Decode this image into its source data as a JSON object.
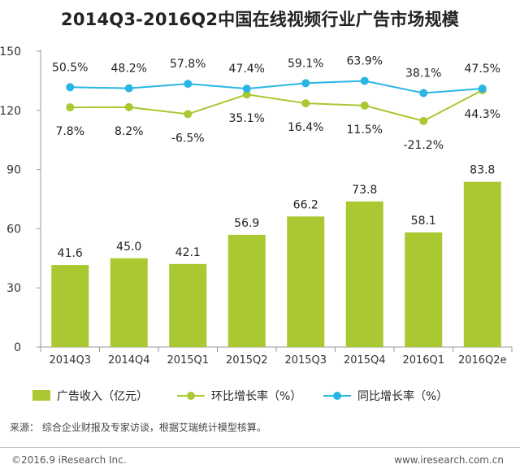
{
  "chart_data": {
    "type": "bar",
    "title": "2014Q3-2016Q2中国在线视频行业广告市场规模",
    "categories": [
      "2014Q3",
      "2014Q4",
      "2015Q1",
      "2015Q2",
      "2015Q3",
      "2015Q4",
      "2016Q1",
      "2016Q2e"
    ],
    "series": [
      {
        "name": "广告收入（亿元）",
        "kind": "bar",
        "color": "#a9c832",
        "values": [
          41.6,
          45.0,
          42.1,
          56.9,
          66.2,
          73.8,
          58.1,
          83.8
        ],
        "labels": [
          "41.6",
          "45.0",
          "42.1",
          "56.9",
          "66.2",
          "73.8",
          "58.1",
          "83.8"
        ]
      },
      {
        "name": "环比增长率（%）",
        "kind": "line",
        "color": "#a9c832",
        "values": [
          7.8,
          8.2,
          -6.5,
          35.1,
          16.4,
          11.5,
          -21.2,
          44.3
        ],
        "labels": [
          "7.8%",
          "8.2%",
          "-6.5%",
          "35.1%",
          "16.4%",
          "11.5%",
          "-21.2%",
          "44.3%"
        ]
      },
      {
        "name": "同比增长率（%）",
        "kind": "line",
        "color": "#2ab6e4",
        "values": [
          50.5,
          48.2,
          57.8,
          47.4,
          59.1,
          63.9,
          38.1,
          47.5
        ],
        "labels": [
          "50.5%",
          "48.2%",
          "57.8%",
          "47.4%",
          "59.1%",
          "63.9%",
          "38.1%",
          "47.5%"
        ]
      }
    ],
    "yticks": [
      "0",
      "30",
      "60",
      "90",
      "120",
      "150"
    ],
    "ylim": [
      0,
      150
    ],
    "grid": false,
    "legend": "bottom",
    "line_scale": "secondary (unlabeled)"
  },
  "footer": {
    "source": "来源： 综合企业财报及专家访谈，根据艾瑞统计模型核算。",
    "copyright": "©2016.9 iResearch Inc.",
    "website": "www.iresearch.com.cn"
  }
}
